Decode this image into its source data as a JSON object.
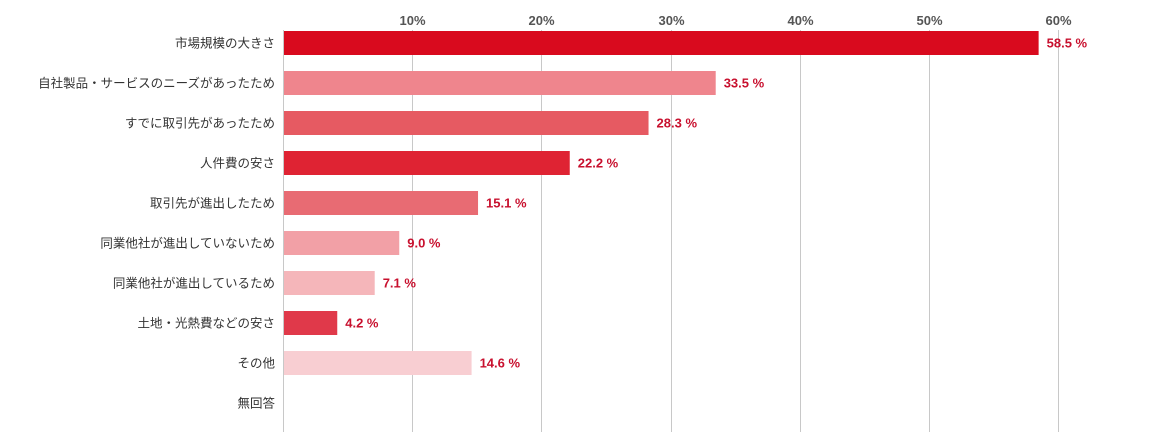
{
  "chart_data": {
    "type": "bar",
    "orientation": "horizontal",
    "categories": [
      "市場規模の大きさ",
      "自社製品・サービスのニーズがあったため",
      "すでに取引先があったため",
      "人件費の安さ",
      "取引先が進出したため",
      "同業他社が進出していないため",
      "同業他社が進出しているため",
      "土地・光熱費などの安さ",
      "その他",
      "無回答"
    ],
    "values": [
      58.5,
      33.5,
      28.3,
      22.2,
      15.1,
      9.0,
      7.1,
      4.2,
      14.6,
      null
    ],
    "value_labels": [
      "58.5 %",
      "33.5 %",
      "28.3 %",
      "22.2 %",
      "15.1 %",
      "9.0 %",
      "7.1 %",
      "4.2 %",
      "14.6 %",
      ""
    ],
    "colors": [
      "#d90a1e",
      "#ef858d",
      "#e65a62",
      "#df2333",
      "#e86b73",
      "#f2a0a6",
      "#f5b6ba",
      "#e0394a",
      "#f8ced2",
      "#ffffff"
    ],
    "xlim": [
      0,
      60
    ],
    "xticks": [
      10,
      20,
      30,
      40,
      50,
      60
    ],
    "xtick_labels": [
      "10%",
      "20%",
      "30%",
      "40%",
      "50%",
      "60%"
    ],
    "title": "",
    "xlabel": "",
    "ylabel": "",
    "grid": true,
    "value_label_color": "#c8102e"
  }
}
